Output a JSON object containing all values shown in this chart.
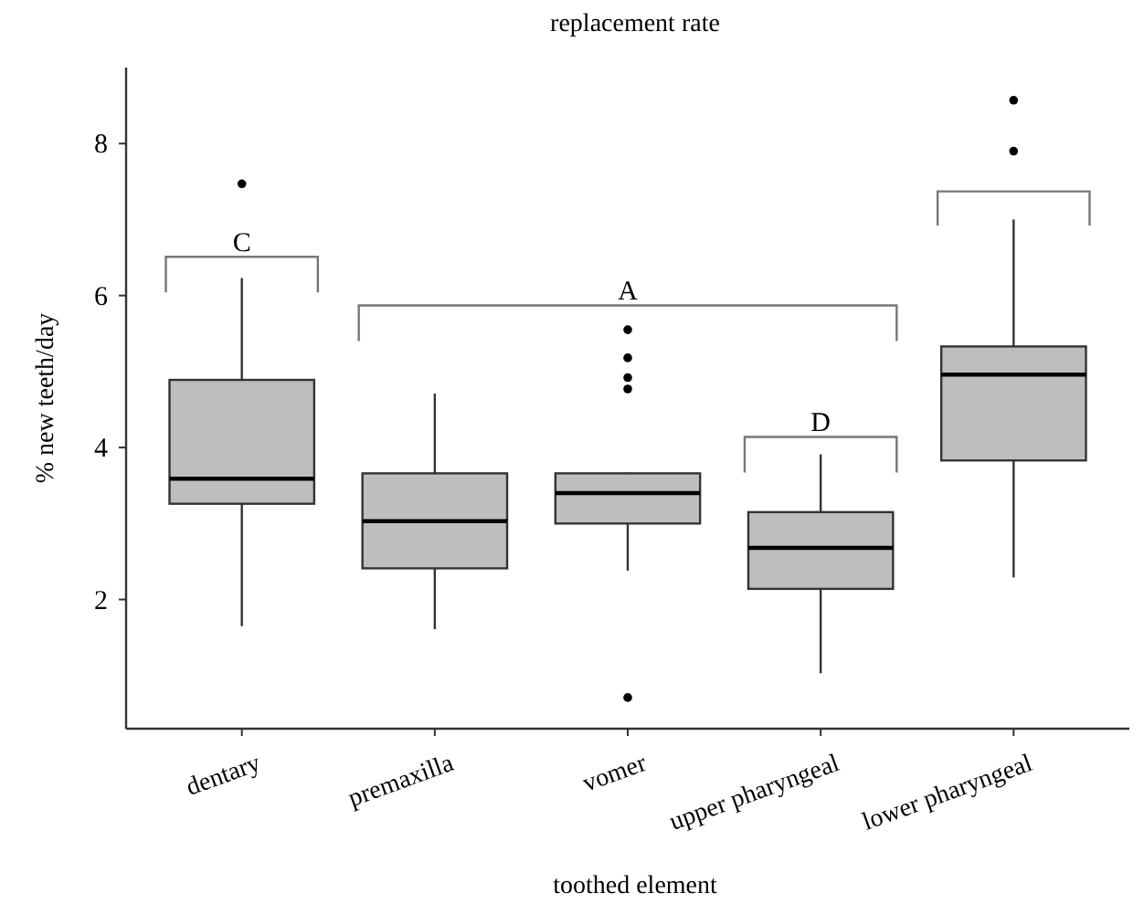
{
  "chart_data": {
    "type": "box",
    "title": "replacement rate",
    "xlabel": "toothed element",
    "ylabel": "% new teeth/day",
    "categories": [
      "dentary",
      "premaxilla",
      "vomer",
      "upper pharyngeal",
      "lower pharyngeal"
    ],
    "boxes": [
      {
        "low": 1.65,
        "q1": 3.26,
        "median": 3.59,
        "q3": 4.89,
        "high": 6.23,
        "outliers": [
          7.47
        ]
      },
      {
        "low": 1.61,
        "q1": 2.41,
        "median": 3.03,
        "q3": 3.66,
        "high": 4.71
      },
      {
        "low": 2.38,
        "q1": 3.0,
        "median": 3.4,
        "q3": 3.66,
        "high": 3.67,
        "outliers": [
          5.55,
          5.18,
          4.92,
          4.77,
          0.71
        ]
      },
      {
        "low": 1.03,
        "q1": 2.14,
        "median": 2.68,
        "q3": 3.15,
        "high": 3.91
      },
      {
        "low": 2.29,
        "q1": 3.83,
        "median": 4.96,
        "q3": 5.33,
        "high": 7.0,
        "outliers": [
          8.57,
          7.9
        ]
      }
    ],
    "color": "#bebebe",
    "ylim": [
      0.3,
      9.0
    ],
    "yticks": [
      2,
      4,
      6,
      8
    ],
    "grid": false,
    "annotations": [
      "C",
      "A",
      "D"
    ]
  }
}
